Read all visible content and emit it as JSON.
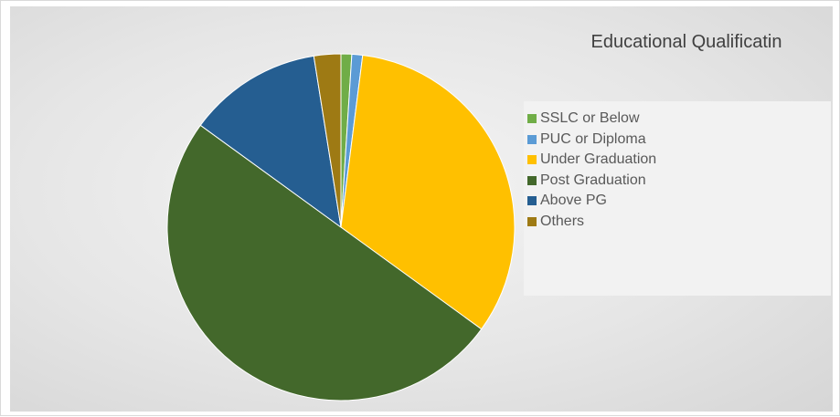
{
  "chart_data": {
    "type": "pie",
    "title": "Educational Qualificatin",
    "legend_position": "right",
    "data_labels_visible": false,
    "categories": [
      "SSLC or Below",
      "PUC or Diploma",
      "Under Graduation",
      "Post Graduation",
      "Above PG",
      "Others"
    ],
    "values": [
      1.0,
      1.0,
      33.0,
      50.0,
      12.5,
      2.5
    ],
    "colors": [
      "#70ad47",
      "#5b9bd5",
      "#ffc000",
      "#43682b",
      "#255e91",
      "#9e7a14"
    ]
  }
}
